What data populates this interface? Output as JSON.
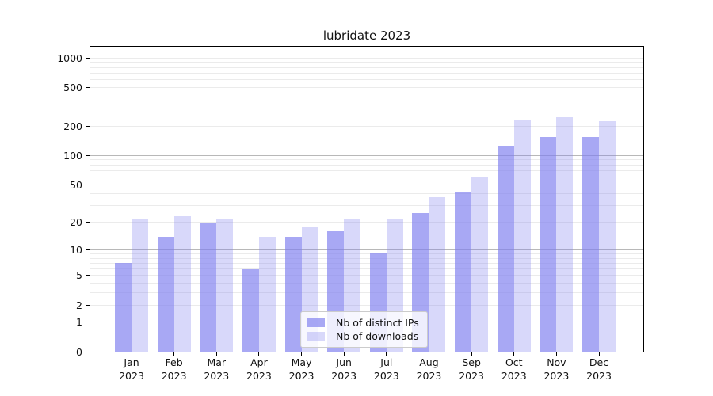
{
  "chart_data": {
    "type": "bar",
    "title": "lubridate 2023",
    "scale": "log1p",
    "grid": true,
    "legend_position": "bottom-center",
    "x": {
      "months": [
        "Jan",
        "Feb",
        "Mar",
        "Apr",
        "May",
        "Jun",
        "Jul",
        "Aug",
        "Sep",
        "Oct",
        "Nov",
        "Dec"
      ],
      "year": "2023"
    },
    "y_axis": {
      "tick_values": [
        0,
        1,
        2,
        5,
        10,
        20,
        50,
        100,
        200,
        500,
        1000
      ],
      "range": [
        0,
        1200
      ]
    },
    "series": [
      {
        "name": "Nb of distinct IPs",
        "color": "#7f7fef",
        "fill_opacity": 0.68,
        "values": [
          7,
          14,
          20,
          6,
          14,
          16,
          9,
          25,
          42,
          126,
          154,
          154
        ]
      },
      {
        "name": "Nb of downloads",
        "color": "#7f7fef",
        "fill_opacity": 0.3,
        "values": [
          22,
          23,
          22,
          14,
          18,
          22,
          22,
          37,
          60,
          228,
          246,
          224
        ]
      }
    ]
  },
  "colors": {
    "bar_base": "#7f7fef",
    "minor_grid": "#ebebeb",
    "major_grid": "#b8b8b8",
    "axis": "#000000",
    "legend_border": "#cccccc",
    "background": "#ffffff"
  }
}
